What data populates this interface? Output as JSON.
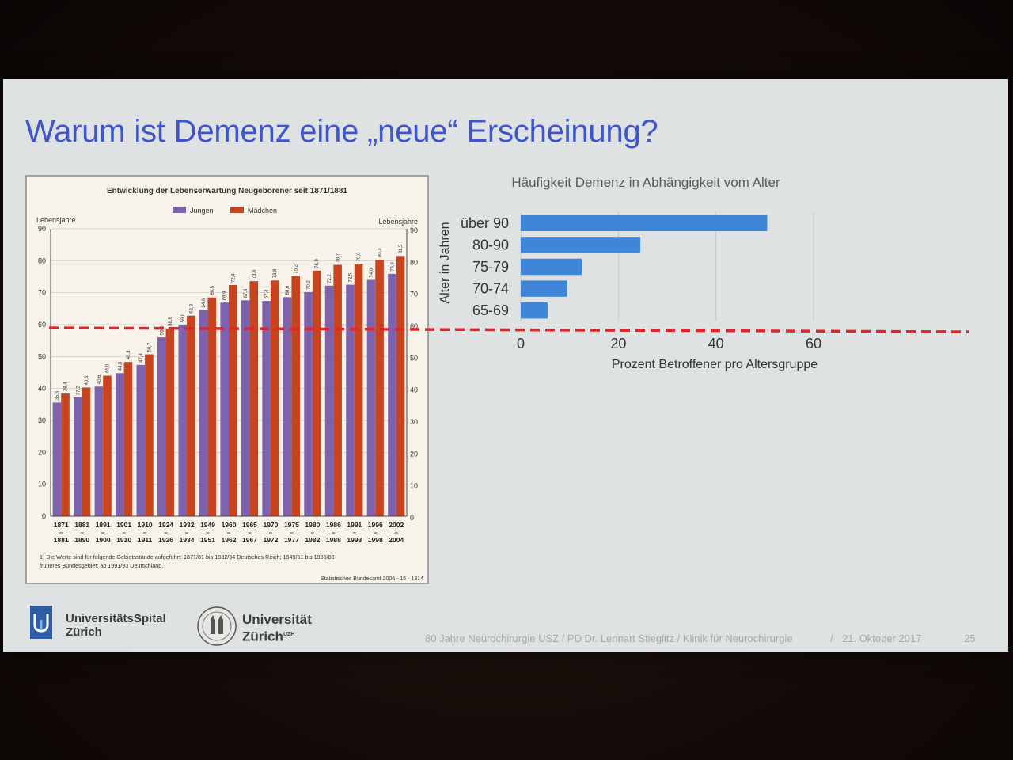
{
  "slide": {
    "title": "Warum ist Demenz eine „neue“ Erscheinung?"
  },
  "chart_data": [
    {
      "type": "bar",
      "title": "Entwicklung der Lebenserwartung Neugeborener seit 1871/1881",
      "ylabel": "Lebensjahre",
      "ylabel_right": "Lebensjahre",
      "ylim": [
        0,
        90
      ],
      "yticks": [
        0,
        10,
        20,
        30,
        40,
        50,
        60,
        70,
        80,
        90
      ],
      "legend_position": "top",
      "categories_top": [
        "1871",
        "1881",
        "1891",
        "1901",
        "1910",
        "1924",
        "1932",
        "1949",
        "1960",
        "1965",
        "1970",
        "1975",
        "1980",
        "1986",
        "1991",
        "1996",
        "2002"
      ],
      "categories_bottom": [
        "1881",
        "1890",
        "1900",
        "1910",
        "1911",
        "1926",
        "1934",
        "1951",
        "1962",
        "1967",
        "1972",
        "1977",
        "1982",
        "1988",
        "1993",
        "1998",
        "2004"
      ],
      "series": [
        {
          "name": "Jungen",
          "color": "#7f62ad",
          "values": [
            35.6,
            37.2,
            40.6,
            44.8,
            47.4,
            56.0,
            59.9,
            64.6,
            66.9,
            67.6,
            67.4,
            68.6,
            70.2,
            72.2,
            72.5,
            74.0,
            75.9
          ],
          "labels": [
            "35,6",
            "37,2",
            "40,6",
            "44,8",
            "47,4",
            "56,0",
            "59,9",
            "64,6",
            "66,9",
            "67,6",
            "67,4",
            "68,6",
            "70,2",
            "72,2",
            "72,5",
            "74,0",
            "75,9"
          ]
        },
        {
          "name": "Mädchen",
          "color": "#c7441e",
          "values": [
            38.4,
            40.3,
            44.0,
            48.3,
            50.7,
            58.8,
            62.8,
            68.5,
            72.4,
            73.6,
            73.8,
            75.2,
            76.9,
            78.7,
            79.0,
            80.3,
            81.5
          ],
          "labels": [
            "38,4",
            "40,3",
            "44,0",
            "48,3",
            "50,7",
            "58,8",
            "62,8",
            "68,5",
            "72,4",
            "73,6",
            "73,8",
            "75,2",
            "76,9",
            "78,7",
            "79,0",
            "80,3",
            "81,5"
          ]
        }
      ],
      "footnote": "1) Die Werte sind für folgende Gebietsstände aufgeführt: 1871/81 bis 1932/34 Deutsches Reich; 1949/51 bis 1986/88 früheres Bundesgebiet; ab 1991/93 Deutschland.",
      "source": "Statistisches Bundesamt 2006 - 15 - 1314"
    },
    {
      "type": "bar",
      "orientation": "horizontal",
      "title": "Häufigkeit Demenz in Abhängigkeit vom Alter",
      "xlabel": "Prozent Betroffener pro Altersgruppe",
      "ylabel": "Alter in Jahren",
      "xlim": [
        0,
        60
      ],
      "xticks": [
        0,
        20,
        40,
        60
      ],
      "categories": [
        "über 90",
        "80-90",
        "75-79",
        "70-74",
        "65-69"
      ],
      "values": [
        50.5,
        24.5,
        12.5,
        9.5,
        5.5
      ],
      "color": "#3f86d8",
      "grid": true
    }
  ],
  "overlay": {
    "reference_line_value": 59,
    "color": "#e0242a",
    "style": "dashed"
  },
  "footer": {
    "usz_line1": "UniversitätsSpital",
    "usz_line2": "Zürich",
    "uzh_line1": "Universität",
    "uzh_line2": "Zürich",
    "uzh_superscript": "UZH",
    "text": "80 Jahre Neurochirurgie USZ / PD Dr. Lennart Stieglitz / Klinik für Neurochirurgie",
    "separator": "/",
    "date": "21. Oktober 2017",
    "page": "25"
  }
}
